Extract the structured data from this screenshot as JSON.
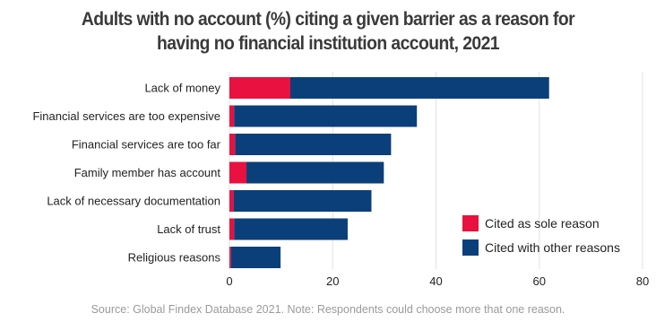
{
  "chart_data": {
    "type": "bar",
    "orientation": "horizontal",
    "stacked": true,
    "title": "Adults with no account (%) citing a given barrier as a reason for having no financial institution account, 2021",
    "title_lines": [
      "Adults with no account (%) citing a given barrier as a reason for",
      "having no financial institution account, 2021"
    ],
    "categories": [
      "Lack of money",
      "Financial services are too expensive",
      "Financial services are too far",
      "Family member has account",
      "Lack of necessary documentation",
      "Lack of trust",
      "Religious reasons"
    ],
    "series": [
      {
        "name": "Cited as sole reason",
        "color": "#e8113f",
        "values": [
          11.8,
          0.9,
          1.1,
          3.3,
          0.8,
          0.9,
          0.3
        ]
      },
      {
        "name": "Cited with other reasons",
        "color": "#0b3f7a",
        "values": [
          50.1,
          35.4,
          30.2,
          26.6,
          26.7,
          22.0,
          9.6
        ]
      }
    ],
    "xlim": [
      0,
      80
    ],
    "xticks": [
      0,
      20,
      40,
      60,
      80
    ],
    "grid": "vertical",
    "legend_position": "bottom-right"
  },
  "source": "Source: Global Findex Database 2021. Note: Respondents could choose more that one reason."
}
